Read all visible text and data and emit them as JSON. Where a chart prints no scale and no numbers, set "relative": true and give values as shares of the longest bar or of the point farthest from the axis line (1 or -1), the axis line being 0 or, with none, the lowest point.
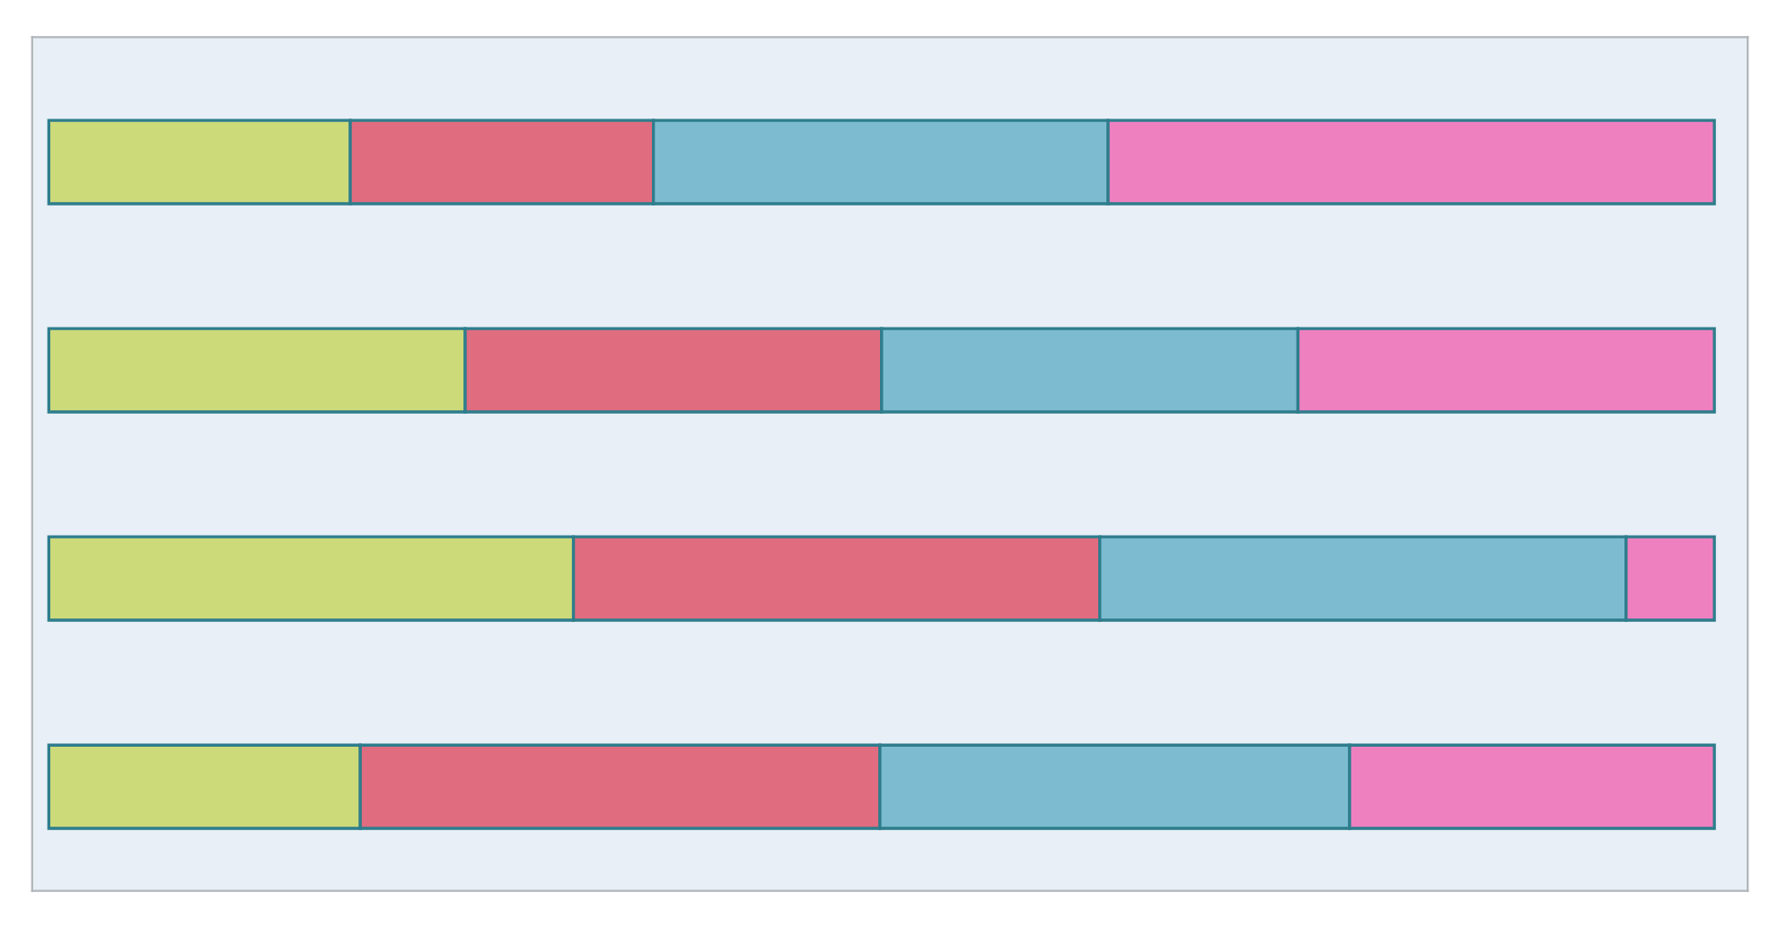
{
  "chart_data": {
    "type": "bar",
    "orientation": "horizontal",
    "stacked": true,
    "relative": true,
    "categories": [
      null,
      null,
      null,
      null
    ],
    "series": [
      {
        "color": "#cdda7a",
        "values": [
          0.181,
          0.25,
          0.315,
          0.187
        ]
      },
      {
        "color": "#e06c80",
        "values": [
          0.182,
          0.25,
          0.316,
          0.312
        ]
      },
      {
        "color": "#7dbcd0",
        "values": [
          0.273,
          0.25,
          0.316,
          0.282
        ]
      },
      {
        "color": "#ee80c0",
        "values": [
          0.364,
          0.25,
          0.053,
          0.219
        ]
      }
    ]
  }
}
